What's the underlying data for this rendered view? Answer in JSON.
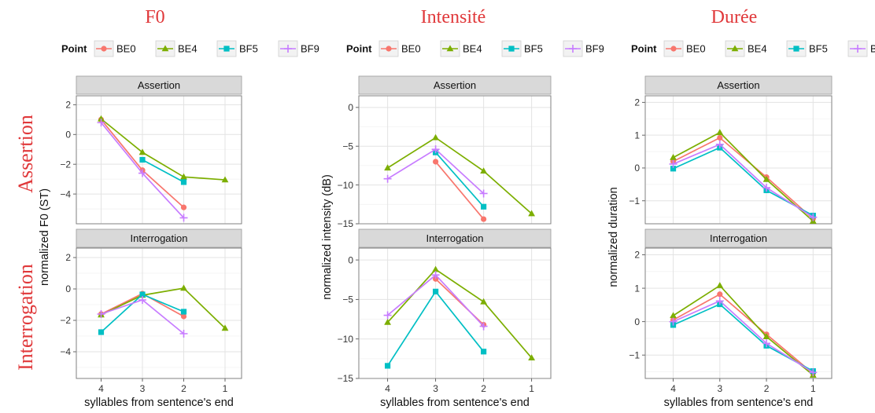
{
  "figure": {
    "title_color": "#e0383a",
    "row_titles": [
      "Assertion",
      "Interrogation"
    ]
  },
  "legend": {
    "title": "Point",
    "labels": [
      "BE0",
      "BE4",
      "BF5",
      "BF9"
    ]
  },
  "chart_data": [
    {
      "type": "line",
      "title": "F0",
      "ylabel": "normalized F0 (ST)",
      "xlabel": "syllables from sentence's end",
      "categories": [
        "4",
        "3",
        "2",
        "1"
      ],
      "legend_title": "Point",
      "legend_position": "top",
      "grid": true,
      "panels": [
        {
          "strip": "Assertion",
          "ylim": [
            -6,
            2.6
          ],
          "yticks": [
            2,
            0,
            -2,
            -4
          ],
          "series": [
            {
              "name": "BE0",
              "color": "#f8766d",
              "marker": "circle",
              "values": [
                1.0,
                -2.4,
                -4.9,
                null
              ]
            },
            {
              "name": "BE4",
              "color": "#7cae00",
              "marker": "triangle",
              "values": [
                1.05,
                -1.2,
                -2.85,
                -3.05
              ]
            },
            {
              "name": "BF5",
              "color": "#00bfc4",
              "marker": "square",
              "values": [
                null,
                -1.7,
                -3.2,
                null
              ]
            },
            {
              "name": "BF9",
              "color": "#c77cff",
              "marker": "plus",
              "values": [
                0.8,
                -2.6,
                -5.6,
                null
              ]
            }
          ]
        },
        {
          "strip": "Interrogation",
          "ylim": [
            -5.7,
            2.6
          ],
          "yticks": [
            2,
            0,
            -2,
            -4
          ],
          "series": [
            {
              "name": "BE0",
              "color": "#f8766d",
              "marker": "circle",
              "values": [
                -1.6,
                -0.3,
                -1.75,
                null
              ]
            },
            {
              "name": "BE4",
              "color": "#7cae00",
              "marker": "triangle",
              "values": [
                -1.65,
                -0.4,
                0.05,
                -2.5
              ]
            },
            {
              "name": "BF5",
              "color": "#00bfc4",
              "marker": "square",
              "values": [
                -2.75,
                -0.35,
                -1.45,
                null
              ]
            },
            {
              "name": "BF9",
              "color": "#c77cff",
              "marker": "plus",
              "values": [
                -1.6,
                -0.7,
                -2.85,
                null
              ]
            }
          ]
        }
      ]
    },
    {
      "type": "line",
      "title": "Intensité",
      "ylabel": "normalized intensity (dB)",
      "xlabel": "syllables from sentence's end",
      "categories": [
        "4",
        "3",
        "2",
        "1"
      ],
      "legend_title": "Point",
      "legend_position": "top",
      "grid": true,
      "panels": [
        {
          "strip": "Assertion",
          "ylim": [
            -15,
            1.5
          ],
          "yticks": [
            0,
            -5,
            -10,
            -15
          ],
          "series": [
            {
              "name": "BE0",
              "color": "#f8766d",
              "marker": "circle",
              "values": [
                null,
                -7.0,
                -14.4,
                null
              ]
            },
            {
              "name": "BE4",
              "color": "#7cae00",
              "marker": "triangle",
              "values": [
                -7.8,
                -3.9,
                -8.2,
                -13.7
              ]
            },
            {
              "name": "BF5",
              "color": "#00bfc4",
              "marker": "square",
              "values": [
                null,
                -5.8,
                -12.8,
                null
              ]
            },
            {
              "name": "BF9",
              "color": "#c77cff",
              "marker": "plus",
              "values": [
                -9.2,
                -5.4,
                -11.1,
                null
              ]
            }
          ]
        },
        {
          "strip": "Interrogation",
          "ylim": [
            -15,
            1.5
          ],
          "yticks": [
            0,
            -5,
            -10,
            -15
          ],
          "series": [
            {
              "name": "BE0",
              "color": "#f8766d",
              "marker": "circle",
              "values": [
                null,
                -2.4,
                -8.2,
                null
              ]
            },
            {
              "name": "BE4",
              "color": "#7cae00",
              "marker": "triangle",
              "values": [
                -7.9,
                -1.2,
                -5.3,
                -12.4
              ]
            },
            {
              "name": "BF5",
              "color": "#00bfc4",
              "marker": "square",
              "values": [
                -13.4,
                -4.0,
                -11.6,
                null
              ]
            },
            {
              "name": "BF9",
              "color": "#c77cff",
              "marker": "plus",
              "values": [
                -7.0,
                -1.9,
                -8.4,
                null
              ]
            }
          ]
        }
      ]
    },
    {
      "type": "line",
      "title": "Durée",
      "ylabel": "normalized duration",
      "xlabel": "syllables from sentence's end",
      "categories": [
        "4",
        "3",
        "2",
        "1"
      ],
      "legend_title": "Point",
      "legend_position": "top",
      "grid": true,
      "panels": [
        {
          "strip": "Assertion",
          "ylim": [
            -1.7,
            2.2
          ],
          "yticks": [
            2,
            1,
            0,
            -1
          ],
          "series": [
            {
              "name": "BE0",
              "color": "#f8766d",
              "marker": "circle",
              "values": [
                0.2,
                0.92,
                -0.28,
                -1.55
              ]
            },
            {
              "name": "BE4",
              "color": "#7cae00",
              "marker": "triangle",
              "values": [
                0.32,
                1.08,
                -0.35,
                -1.62
              ]
            },
            {
              "name": "BF5",
              "color": "#00bfc4",
              "marker": "square",
              "values": [
                -0.02,
                0.62,
                -0.68,
                -1.45
              ]
            },
            {
              "name": "BF9",
              "color": "#c77cff",
              "marker": "plus",
              "values": [
                0.12,
                0.72,
                -0.6,
                -1.5
              ]
            }
          ]
        },
        {
          "strip": "Interrogation",
          "ylim": [
            -1.7,
            2.2
          ],
          "yticks": [
            2,
            1,
            0,
            -1
          ],
          "series": [
            {
              "name": "BE0",
              "color": "#f8766d",
              "marker": "circle",
              "values": [
                0.05,
                0.82,
                -0.38,
                -1.55
              ]
            },
            {
              "name": "BE4",
              "color": "#7cae00",
              "marker": "triangle",
              "values": [
                0.18,
                1.08,
                -0.45,
                -1.6
              ]
            },
            {
              "name": "BF5",
              "color": "#00bfc4",
              "marker": "square",
              "values": [
                -0.1,
                0.52,
                -0.72,
                -1.48
              ]
            },
            {
              "name": "BF9",
              "color": "#c77cff",
              "marker": "plus",
              "values": [
                0.0,
                0.62,
                -0.65,
                -1.52
              ]
            }
          ]
        }
      ]
    }
  ]
}
